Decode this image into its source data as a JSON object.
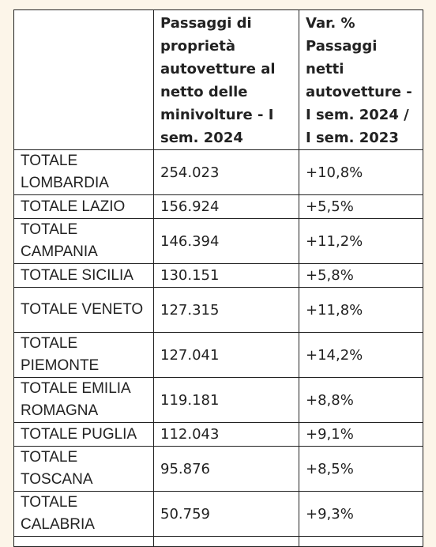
{
  "table": {
    "headers": [
      "",
      "Passaggi di proprietà autovetture al netto delle minivolture -  I sem. 2024",
      "Var. % Passaggi netti autovetture - I sem. 2024 / I sem. 2023"
    ],
    "rows": [
      {
        "region": "TOTALE LOMBARDIA",
        "value": "254.023",
        "var": "+10,8%"
      },
      {
        "region": "TOTALE LAZIO",
        "value": "156.924",
        "var": "+5,5%"
      },
      {
        "region": "TOTALE CAMPANIA",
        "value": "146.394",
        "var": "+11,2%"
      },
      {
        "region": "TOTALE SICILIA",
        "value": "130.151",
        "var": "+5,8%"
      },
      {
        "region": "TOTALE VENETO",
        "value": "127.315",
        "var": "+11,8%"
      },
      {
        "region": "TOTALE PIEMONTE",
        "value": "127.041",
        "var": "+14,2%"
      },
      {
        "region": "TOTALE EMILIA ROMAGNA",
        "value": "119.181",
        "var": "+8,8%"
      },
      {
        "region": "TOTALE PUGLIA",
        "value": "112.043",
        "var": "+9,1%"
      },
      {
        "region": "TOTALE TOSCANA",
        "value": "95.876",
        "var": "+8,5%"
      },
      {
        "region": "TOTALE CALABRIA",
        "value": "50.759",
        "var": "+9,3%"
      }
    ]
  }
}
